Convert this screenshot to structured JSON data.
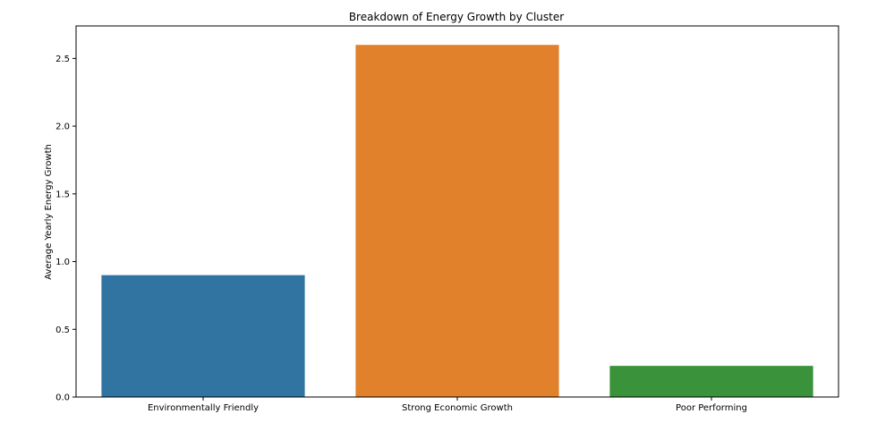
{
  "chart_data": {
    "type": "bar",
    "title": "Breakdown of Energy Growth by Cluster",
    "xlabel": "",
    "ylabel": "Average Yearly Energy Growth",
    "categories": [
      "Environmentally Friendly",
      "Strong Economic Growth",
      "Poor Performing"
    ],
    "values": [
      0.9,
      2.6,
      0.23
    ],
    "colors": [
      "#3274a1",
      "#e1812c",
      "#3a923a"
    ],
    "ylim": [
      0,
      2.74
    ],
    "yticks": [
      "0.0",
      "0.5",
      "1.0",
      "1.5",
      "2.0",
      "2.5"
    ],
    "grid": false,
    "legend": "none"
  }
}
